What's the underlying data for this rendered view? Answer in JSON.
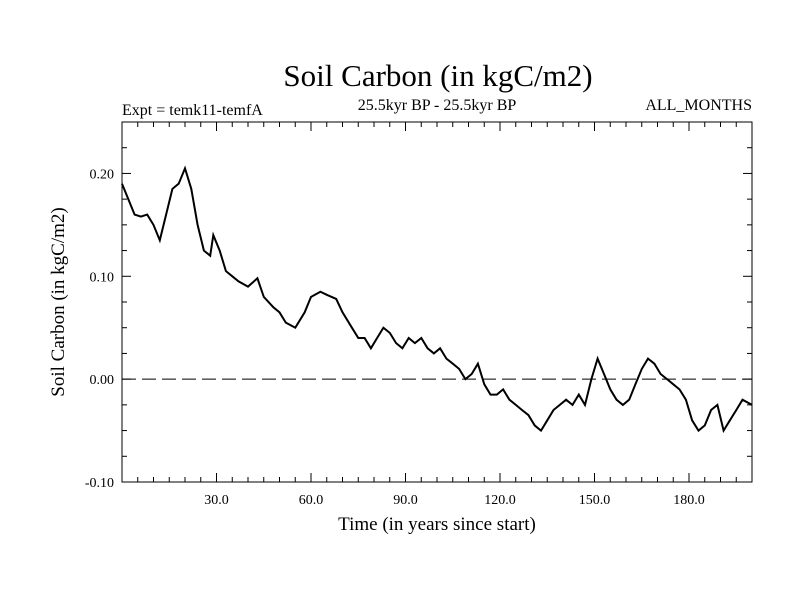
{
  "chart_data": {
    "type": "line",
    "title": "Soil Carbon (in kgC/m2)",
    "header_left": "Expt = temk11-temfA",
    "header_center": "25.5kyr BP - 25.5kyr BP",
    "header_right": "ALL_MONTHS",
    "xlabel": "Time (in years since start)",
    "ylabel": "Soil Carbon (in kgC/m2)",
    "xlim": [
      0,
      200
    ],
    "ylim": [
      -0.1,
      0.25
    ],
    "x_ticks": [
      30,
      60,
      90,
      120,
      150,
      180
    ],
    "x_tick_labels": [
      "30.0",
      "60.0",
      "90.0",
      "120.0",
      "150.0",
      "180.0"
    ],
    "y_ticks": [
      -0.1,
      0.0,
      0.1,
      0.2
    ],
    "y_tick_labels": [
      "-0.10",
      "0.00",
      "0.10",
      "0.20"
    ],
    "reference_line": {
      "y": 0.0,
      "style": "dashed"
    },
    "grid": false,
    "series": [
      {
        "x": [
          0,
          2,
          4,
          6,
          8,
          10,
          12,
          14,
          16,
          18,
          20,
          22,
          24,
          26,
          28,
          29,
          31,
          33,
          35,
          37,
          40,
          43,
          45,
          48,
          50,
          52,
          55,
          58,
          60,
          63,
          65,
          68,
          70,
          73,
          75,
          77,
          79,
          81,
          83,
          85,
          87,
          89,
          91,
          93,
          95,
          97,
          99,
          101,
          103,
          105,
          107,
          109,
          111,
          113,
          115,
          117,
          119,
          121,
          123,
          125,
          127,
          129,
          131,
          133,
          135,
          137,
          139,
          141,
          143,
          145,
          147,
          149,
          151,
          153,
          155,
          157,
          159,
          161,
          163,
          165,
          167,
          169,
          171,
          173,
          175,
          177,
          179,
          181,
          183,
          185,
          187,
          189,
          191,
          193,
          195,
          197,
          200
        ],
        "y": [
          0.19,
          0.175,
          0.16,
          0.158,
          0.16,
          0.15,
          0.135,
          0.16,
          0.185,
          0.19,
          0.205,
          0.185,
          0.15,
          0.125,
          0.12,
          0.14,
          0.125,
          0.105,
          0.1,
          0.095,
          0.09,
          0.098,
          0.08,
          0.07,
          0.065,
          0.055,
          0.05,
          0.065,
          0.08,
          0.085,
          0.082,
          0.078,
          0.065,
          0.05,
          0.04,
          0.04,
          0.03,
          0.04,
          0.05,
          0.045,
          0.035,
          0.03,
          0.04,
          0.035,
          0.04,
          0.03,
          0.025,
          0.03,
          0.02,
          0.015,
          0.01,
          0.0,
          0.005,
          0.015,
          -0.005,
          -0.015,
          -0.015,
          -0.01,
          -0.02,
          -0.025,
          -0.03,
          -0.035,
          -0.045,
          -0.05,
          -0.04,
          -0.03,
          -0.025,
          -0.02,
          -0.025,
          -0.015,
          -0.025,
          0.0,
          0.02,
          0.005,
          -0.01,
          -0.02,
          -0.025,
          -0.02,
          -0.005,
          0.01,
          0.02,
          0.015,
          0.005,
          0.0,
          -0.005,
          -0.01,
          -0.02,
          -0.04,
          -0.05,
          -0.045,
          -0.03,
          -0.025,
          -0.05,
          -0.04,
          -0.03,
          -0.02,
          -0.025
        ]
      }
    ]
  }
}
